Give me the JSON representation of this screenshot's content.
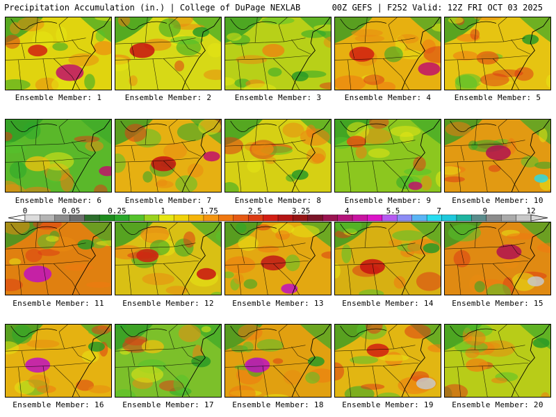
{
  "header": {
    "left": "Precipitation Accumulation (in.) | College of DuPage NEXLAB",
    "right": "00Z GEFS | F252 Valid: 12Z FRI OCT 03 2025"
  },
  "members": [
    {
      "label": "Ensemble Member: 1",
      "base": "#e0d40f",
      "hot": [
        [
          0.6,
          0.75,
          0.5,
          "#c0106a"
        ],
        [
          0.3,
          0.45,
          0.35,
          "#d02010"
        ]
      ]
    },
    {
      "label": "Ensemble Member: 2",
      "base": "#d7d916",
      "hot": [
        [
          0.25,
          0.45,
          0.45,
          "#c81212"
        ],
        [
          0.8,
          0.2,
          0.3,
          "#2a9a26"
        ]
      ]
    },
    {
      "label": "Ensemble Member: 3",
      "base": "#b8d018",
      "hot": [
        [
          0.45,
          0.45,
          0.4,
          "#e98a10"
        ],
        [
          0.7,
          0.8,
          0.3,
          "#2a9a26"
        ]
      ]
    },
    {
      "label": "Ensemble Member: 4",
      "base": "#e7b010",
      "hot": [
        [
          0.88,
          0.7,
          0.4,
          "#c0106a"
        ],
        [
          0.25,
          0.5,
          0.45,
          "#d02010"
        ]
      ]
    },
    {
      "label": "Ensemble Member: 5",
      "base": "#e6c412",
      "hot": [
        [
          0.4,
          0.55,
          0.4,
          "#e26a10"
        ],
        [
          0.8,
          0.3,
          0.3,
          "#2a9a26"
        ]
      ]
    },
    {
      "label": "Ensemble Member: 6",
      "base": "#5ab82a",
      "hot": [
        [
          0.3,
          0.6,
          0.45,
          "#e0c010"
        ],
        [
          0.95,
          0.7,
          0.3,
          "#c0106a"
        ]
      ]
    },
    {
      "label": "Ensemble Member: 7",
      "base": "#e6b012",
      "hot": [
        [
          0.45,
          0.6,
          0.45,
          "#c81212"
        ],
        [
          0.9,
          0.5,
          0.3,
          "#c0106a"
        ]
      ]
    },
    {
      "label": "Ensemble Member: 8",
      "base": "#d6d014",
      "hot": [
        [
          0.35,
          0.4,
          0.4,
          "#e98a10"
        ],
        [
          0.7,
          0.75,
          0.3,
          "#2a9a26"
        ]
      ]
    },
    {
      "label": "Ensemble Member: 9",
      "base": "#8cc71f",
      "hot": [
        [
          0.2,
          0.3,
          0.35,
          "#e05010"
        ],
        [
          0.75,
          0.9,
          0.25,
          "#c0106a"
        ]
      ]
    },
    {
      "label": "Ensemble Member: 10",
      "base": "#e29a12",
      "hot": [
        [
          0.5,
          0.45,
          0.45,
          "#b01050"
        ],
        [
          0.9,
          0.8,
          0.25,
          "#30d8e0"
        ]
      ]
    },
    {
      "label": "Ensemble Member: 11",
      "base": "#e08010",
      "hot": [
        [
          0.3,
          0.7,
          0.5,
          "#c010c0"
        ],
        [
          0.75,
          0.3,
          0.3,
          "#2a9a26"
        ]
      ]
    },
    {
      "label": "Ensemble Member: 12",
      "base": "#d9c014",
      "hot": [
        [
          0.3,
          0.45,
          0.4,
          "#d02010"
        ],
        [
          0.85,
          0.7,
          0.35,
          "#c81212"
        ]
      ]
    },
    {
      "label": "Ensemble Member: 13",
      "base": "#e3a811",
      "hot": [
        [
          0.45,
          0.55,
          0.45,
          "#c01818"
        ],
        [
          0.6,
          0.9,
          0.3,
          "#c010c0"
        ]
      ]
    },
    {
      "label": "Ensemble Member: 14",
      "base": "#d7b012",
      "hot": [
        [
          0.35,
          0.6,
          0.45,
          "#c81212"
        ],
        [
          0.9,
          0.35,
          0.3,
          "#2a9a26"
        ]
      ]
    },
    {
      "label": "Ensemble Member: 15",
      "base": "#e08a12",
      "hot": [
        [
          0.6,
          0.4,
          0.45,
          "#b01050"
        ],
        [
          0.85,
          0.8,
          0.3,
          "#c8c8c8"
        ]
      ]
    },
    {
      "label": "Ensemble Member: 16",
      "base": "#e5b211",
      "hot": [
        [
          0.3,
          0.55,
          0.45,
          "#c010c0"
        ],
        [
          0.85,
          0.3,
          0.3,
          "#2a9a26"
        ]
      ]
    },
    {
      "label": "Ensemble Member: 17",
      "base": "#7cc02a",
      "hot": [
        [
          0.35,
          0.3,
          0.4,
          "#e0c010"
        ],
        [
          0.8,
          0.5,
          0.35,
          "#2a9a26"
        ]
      ]
    },
    {
      "label": "Ensemble Member: 18",
      "base": "#e1a010",
      "hot": [
        [
          0.3,
          0.55,
          0.45,
          "#c010c0"
        ],
        [
          0.85,
          0.5,
          0.3,
          "#2a9a26"
        ]
      ]
    },
    {
      "label": "Ensemble Member: 19",
      "base": "#e2b612",
      "hot": [
        [
          0.4,
          0.35,
          0.4,
          "#d02010"
        ],
        [
          0.85,
          0.8,
          0.35,
          "#c8c8c8"
        ]
      ]
    },
    {
      "label": "Ensemble Member: 20",
      "base": "#b8cc18",
      "hot": [
        [
          0.3,
          0.55,
          0.4,
          "#e98a10"
        ],
        [
          0.9,
          0.25,
          0.3,
          "#2a9a26"
        ]
      ]
    }
  ],
  "legend": {
    "tick_labels": [
      "0",
      "0.05",
      "0.25",
      "1",
      "1.75",
      "2.5",
      "3.25",
      "4",
      "5.5",
      "7",
      "9",
      "12"
    ],
    "colors": [
      "#dcdcdc",
      "#b4b4b4",
      "#8c8c8c",
      "#6e6e6e",
      "#2c6e2c",
      "#1e8c1e",
      "#2aa82a",
      "#54c22c",
      "#9ad21e",
      "#e6e614",
      "#f0d20a",
      "#f5b40a",
      "#f59610",
      "#f07810",
      "#e65a14",
      "#dc3c14",
      "#d21e14",
      "#b41414",
      "#961414",
      "#7a1428",
      "#9a1450",
      "#b4147a",
      "#c814a0",
      "#dc14c8",
      "#b45af0",
      "#8c8cf5",
      "#5ab4f5",
      "#28dcf0",
      "#1ec8dc",
      "#1eb4a0",
      "#5a8c8c",
      "#8c8c8c",
      "#aaaaaa",
      "#c8c8c8"
    ]
  }
}
